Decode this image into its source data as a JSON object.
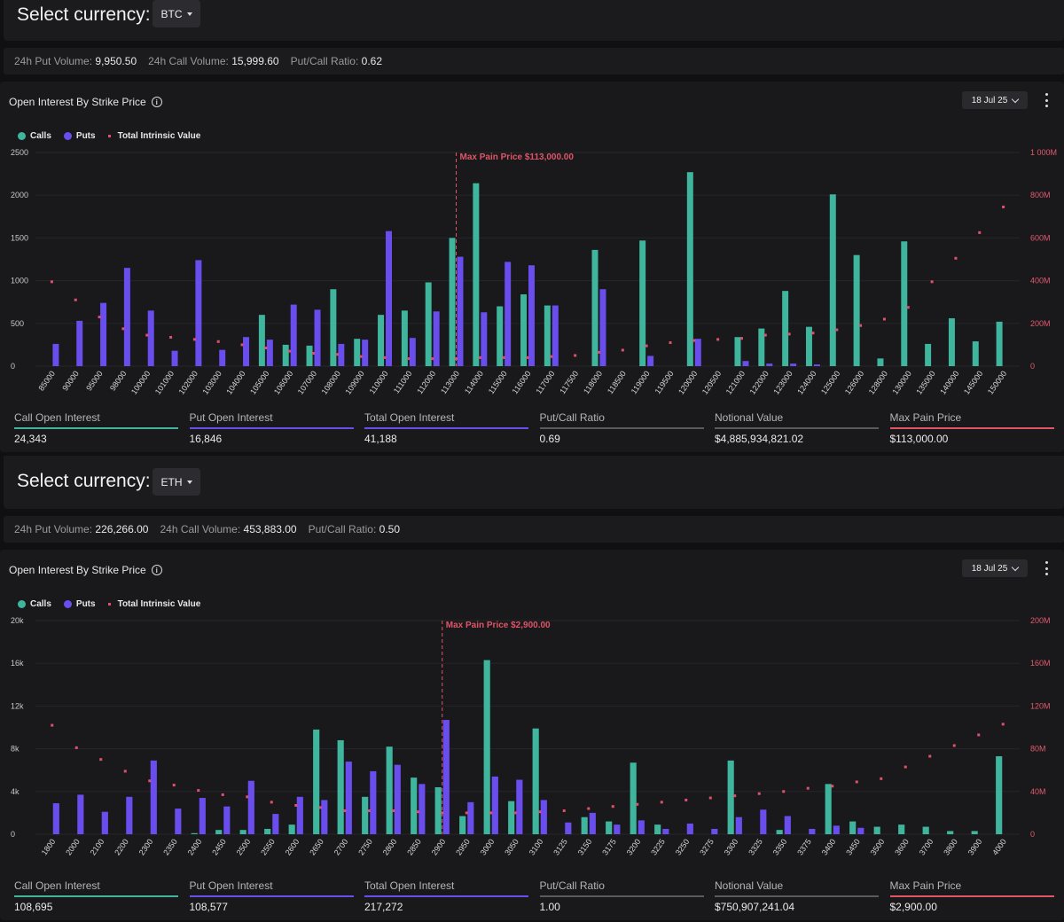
{
  "colors": {
    "calls": "#3eb59c",
    "puts": "#6a4ded",
    "intrinsic": "#e0506a",
    "maxpain": "#e05565",
    "neutral": "#5a5a5e"
  },
  "sections": [
    {
      "currency_label": "Select currency:",
      "currency": "BTC",
      "volume": {
        "put_label": "24h Put Volume:",
        "put_value": "9,950.50",
        "call_label": "24h Call Volume:",
        "call_value": "15,999.60",
        "ratio_label": "Put/Call Ratio:",
        "ratio_value": "0.62"
      },
      "panel_title": "Open Interest By Strike Price",
      "date": "18 Jul 25",
      "legend": {
        "calls": "Calls",
        "puts": "Puts",
        "intrinsic": "Total Intrinsic Value"
      },
      "max_pain_label": "Max Pain Price $113,000.00",
      "stats": [
        {
          "label": "Call Open Interest",
          "value": "24,343",
          "color": "calls"
        },
        {
          "label": "Put Open Interest",
          "value": "16,846",
          "color": "puts"
        },
        {
          "label": "Total Open Interest",
          "value": "41,188",
          "color": "puts"
        },
        {
          "label": "Put/Call Ratio",
          "value": "0.69",
          "color": "neutral"
        },
        {
          "label": "Notional Value",
          "value": "$4,885,934,821.02",
          "color": "neutral"
        },
        {
          "label": "Max Pain Price",
          "value": "$113,000.00",
          "color": "maxpain"
        }
      ],
      "chart_data": {
        "type": "bar",
        "max_pain_index": 17,
        "y_left": {
          "min": 0,
          "max": 2500,
          "ticks": [
            "0",
            "500",
            "1000",
            "1500",
            "2000",
            "2500"
          ]
        },
        "y_right": {
          "min": 0,
          "max": 1000,
          "ticks": [
            "0",
            "200M",
            "400M",
            "600M",
            "800M",
            "1 000M"
          ]
        },
        "categories": [
          "85000",
          "90000",
          "95000",
          "98000",
          "100000",
          "101000",
          "102000",
          "103000",
          "104000",
          "105000",
          "106000",
          "107000",
          "108000",
          "109000",
          "110000",
          "111000",
          "112000",
          "113000",
          "114000",
          "115000",
          "116000",
          "117000",
          "117500",
          "118000",
          "118500",
          "119000",
          "119500",
          "120000",
          "120500",
          "121000",
          "122000",
          "123000",
          "124000",
          "125000",
          "126000",
          "128000",
          "130000",
          "135000",
          "140000",
          "145000",
          "150000"
        ],
        "series": [
          {
            "name": "Calls",
            "values": [
              0,
              0,
              0,
              0,
              0,
              0,
              0,
              0,
              0,
              600,
              250,
              240,
              900,
              320,
              600,
              650,
              980,
              1500,
              2140,
              700,
              840,
              710,
              0,
              1360,
              0,
              1470,
              0,
              2270,
              0,
              340,
              440,
              880,
              460,
              2010,
              1300,
              90,
              1460,
              260,
              560,
              290,
              520
            ]
          },
          {
            "name": "Puts",
            "values": [
              260,
              530,
              740,
              1150,
              650,
              180,
              1240,
              190,
              340,
              310,
              720,
              660,
              260,
              310,
              1580,
              330,
              640,
              1280,
              630,
              1220,
              1180,
              710,
              0,
              900,
              0,
              120,
              0,
              320,
              0,
              60,
              30,
              30,
              20,
              0,
              0,
              0,
              0,
              0,
              0,
              0,
              0
            ]
          },
          {
            "name": "Total Intrinsic Value",
            "values": [
              395,
              310,
              230,
              175,
              145,
              135,
              125,
              115,
              100,
              85,
              70,
              60,
              55,
              45,
              40,
              35,
              35,
              35,
              40,
              40,
              40,
              45,
              50,
              65,
              75,
              95,
              110,
              120,
              125,
              130,
              145,
              150,
              155,
              170,
              190,
              220,
              275,
              395,
              505,
              625,
              745
            ]
          }
        ]
      }
    },
    {
      "currency_label": "Select currency:",
      "currency": "ETH",
      "volume": {
        "put_label": "24h Put Volume:",
        "put_value": "226,266.00",
        "call_label": "24h Call Volume:",
        "call_value": "453,883.00",
        "ratio_label": "Put/Call Ratio:",
        "ratio_value": "0.50"
      },
      "panel_title": "Open Interest By Strike Price",
      "date": "18 Jul 25",
      "legend": {
        "calls": "Calls",
        "puts": "Puts",
        "intrinsic": "Total Intrinsic Value"
      },
      "max_pain_label": "Max Pain Price $2,900.00",
      "stats": [
        {
          "label": "Call Open Interest",
          "value": "108,695",
          "color": "calls"
        },
        {
          "label": "Put Open Interest",
          "value": "108,577",
          "color": "puts"
        },
        {
          "label": "Total Open Interest",
          "value": "217,272",
          "color": "puts"
        },
        {
          "label": "Put/Call Ratio",
          "value": "1.00",
          "color": "neutral"
        },
        {
          "label": "Notional Value",
          "value": "$750,907,241.04",
          "color": "neutral"
        },
        {
          "label": "Max Pain Price",
          "value": "$2,900.00",
          "color": "maxpain"
        }
      ],
      "chart_data": {
        "type": "bar",
        "max_pain_index": 16,
        "y_left": {
          "min": 0,
          "max": 20000,
          "ticks": [
            "0",
            "4k",
            "8k",
            "12k",
            "16k",
            "20k"
          ]
        },
        "y_right": {
          "min": 0,
          "max": 200,
          "ticks": [
            "0",
            "40M",
            "80M",
            "120M",
            "160M",
            "200M"
          ]
        },
        "categories": [
          "1800",
          "2000",
          "2100",
          "2200",
          "2300",
          "2350",
          "2400",
          "2450",
          "2500",
          "2550",
          "2600",
          "2650",
          "2700",
          "2750",
          "2800",
          "2850",
          "2900",
          "2950",
          "3000",
          "3050",
          "3100",
          "3125",
          "3150",
          "3175",
          "3200",
          "3225",
          "3250",
          "3275",
          "3300",
          "3325",
          "3350",
          "3375",
          "3400",
          "3450",
          "3500",
          "3600",
          "3700",
          "3800",
          "3900",
          "4000"
        ],
        "series": [
          {
            "name": "Calls",
            "values": [
              0,
              0,
              0,
              0,
              0,
              0,
              100,
              400,
              400,
              500,
              900,
              9800,
              8800,
              3500,
              8200,
              5300,
              4400,
              1700,
              16300,
              3100,
              9900,
              0,
              1600,
              1200,
              6700,
              900,
              0,
              0,
              6900,
              0,
              400,
              0,
              4700,
              1200,
              700,
              900,
              700,
              300,
              300,
              7300
            ]
          },
          {
            "name": "Puts",
            "values": [
              2900,
              3700,
              2100,
              3500,
              6900,
              2400,
              3400,
              2600,
              5000,
              1900,
              3500,
              3200,
              6800,
              5900,
              6500,
              4700,
              10700,
              3000,
              5400,
              5100,
              3200,
              1100,
              2000,
              900,
              1300,
              500,
              1000,
              500,
              1600,
              2300,
              1700,
              500,
              800,
              600,
              0,
              0,
              0,
              0,
              0,
              0
            ]
          },
          {
            "name": "Total Intrinsic Value",
            "values": [
              102,
              81,
              70,
              59,
              50,
              46,
              41,
              37,
              35,
              30,
              27,
              25,
              22,
              22,
              22,
              21,
              20,
              20,
              20,
              20,
              21,
              22,
              24,
              26,
              28,
              30,
              32,
              34,
              36,
              38,
              40,
              43,
              45,
              49,
              52,
              63,
              73,
              83,
              93,
              103
            ]
          }
        ]
      }
    }
  ]
}
